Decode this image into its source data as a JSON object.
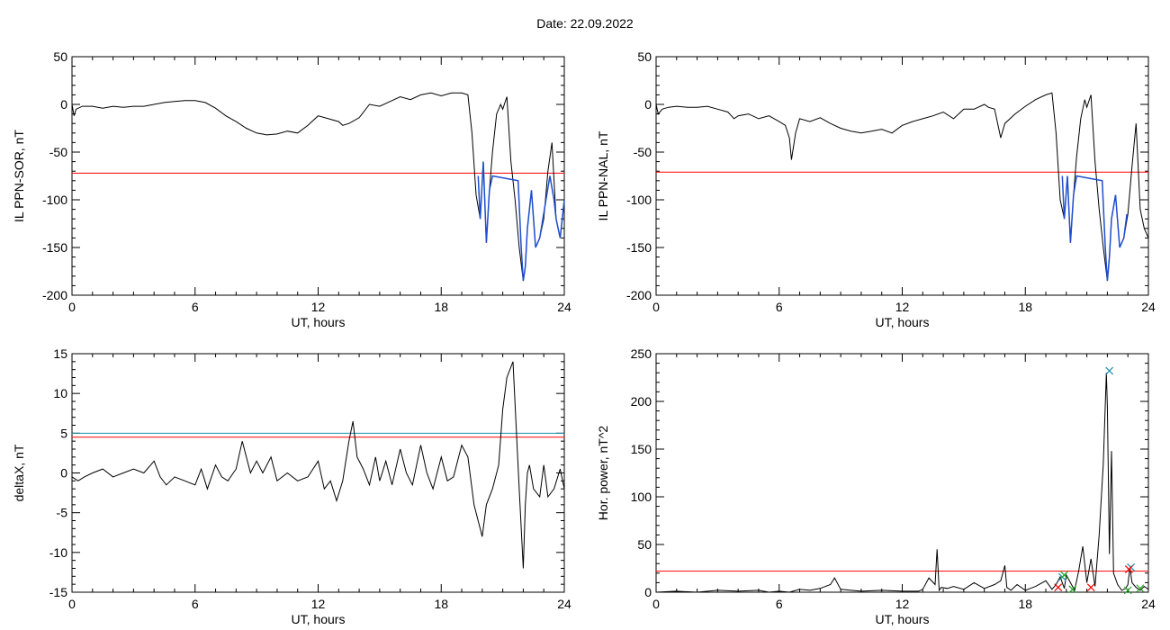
{
  "figure_title": "Date:  22.09.2022",
  "colors": {
    "trace": "#000000",
    "threshold_red": "#ff0000",
    "threshold_blue": "#1a8fb0",
    "highlight_blue": "#1f4fd0",
    "marker_green": "#1faa1f"
  },
  "chart_data": [
    {
      "id": "ppn-sor",
      "type": "line",
      "xlabel": "UT, hours",
      "ylabel": "IL PPN-SOR, nT",
      "xlim": [
        0,
        24
      ],
      "ylim": [
        -200,
        50
      ],
      "xticks": [
        "0",
        "6",
        "12",
        "18",
        "24"
      ],
      "yticks": [
        "50",
        "0",
        "-50",
        "-100",
        "-150",
        "-200"
      ],
      "threshold_red": -72,
      "series": [
        {
          "x": [
            0,
            0.1,
            0.2,
            0.5,
            1,
            1.5,
            2,
            2.5,
            3,
            3.5,
            4,
            4.5,
            5,
            5.5,
            6,
            6.5,
            7,
            7.5,
            8,
            8.5,
            9,
            9.5,
            10,
            10.5,
            11,
            11.5,
            12,
            12.5,
            13,
            13.2,
            13.5,
            14,
            14.5,
            15,
            15.5,
            16,
            16.5,
            17,
            17.5,
            18,
            18.5,
            19,
            19.3,
            19.5,
            19.7,
            19.9,
            20.05,
            20.2,
            20.35,
            20.5,
            20.7,
            20.9,
            21,
            21.2,
            21.4,
            21.6,
            21.8,
            22,
            22.1,
            22.2,
            22.4,
            22.6,
            22.8,
            23,
            23.2,
            23.4,
            23.6,
            23.8,
            24
          ],
          "values": [
            0,
            -12,
            -5,
            -2,
            -2,
            -4,
            -2,
            -3,
            -2,
            -2,
            0,
            2,
            3,
            4,
            4,
            2,
            -4,
            -12,
            -18,
            -25,
            -30,
            -32,
            -31,
            -28,
            -30,
            -22,
            -12,
            -15,
            -18,
            -22,
            -20,
            -14,
            0,
            -2,
            3,
            8,
            5,
            10,
            12,
            9,
            12,
            12,
            10,
            -30,
            -95,
            -120,
            -60,
            -145,
            -90,
            -50,
            -10,
            0,
            -5,
            8,
            -60,
            -100,
            -150,
            -185,
            -170,
            -130,
            -90,
            -150,
            -140,
            -120,
            -70,
            -40,
            -120,
            -140,
            -100
          ]
        }
      ],
      "highlight": {
        "x": [
          19.8,
          19.9,
          20.05,
          20.2,
          20.35,
          20.5,
          21.75,
          21.9,
          22.0,
          22.1,
          22.2,
          22.4,
          22.6,
          22.8,
          23.3,
          23.5,
          23.6,
          23.8,
          24
        ],
        "values": [
          -75,
          -120,
          -60,
          -145,
          -90,
          -75,
          -80,
          -150,
          -185,
          -170,
          -130,
          -90,
          -150,
          -140,
          -75,
          -100,
          -120,
          -140,
          -100
        ]
      }
    },
    {
      "id": "ppn-nal",
      "type": "line",
      "xlabel": "UT, hours",
      "ylabel": "IL PPN-NAL, nT",
      "xlim": [
        0,
        24
      ],
      "ylim": [
        -200,
        50
      ],
      "xticks": [
        "0",
        "6",
        "12",
        "18",
        "24"
      ],
      "yticks": [
        "50",
        "0",
        "-50",
        "-100",
        "-150",
        "-200"
      ],
      "threshold_red": -71,
      "series": [
        {
          "x": [
            0,
            0.1,
            0.3,
            0.6,
            1,
            1.5,
            2,
            2.5,
            3,
            3.5,
            3.8,
            4,
            4.5,
            5,
            5.5,
            6,
            6.3,
            6.5,
            6.6,
            6.8,
            7,
            7.5,
            8,
            8.5,
            9,
            9.5,
            10,
            10.5,
            11,
            11.5,
            12,
            12.5,
            13,
            13.5,
            14,
            14.5,
            15,
            15.5,
            16,
            16.2,
            16.5,
            16.8,
            17,
            17.5,
            18,
            18.5,
            19,
            19.3,
            19.5,
            19.7,
            19.9,
            20.05,
            20.2,
            20.35,
            20.5,
            20.7,
            20.9,
            21,
            21.2,
            21.4,
            21.6,
            21.8,
            22,
            22.1,
            22.2,
            22.4,
            22.6,
            22.8,
            23,
            23.2,
            23.4,
            23.6,
            23.8,
            24
          ],
          "values": [
            0,
            -10,
            -5,
            -3,
            -2,
            -3,
            -3,
            -2,
            -5,
            -8,
            -15,
            -12,
            -10,
            -15,
            -12,
            -18,
            -22,
            -35,
            -58,
            -30,
            -15,
            -18,
            -14,
            -20,
            -25,
            -28,
            -30,
            -28,
            -26,
            -30,
            -22,
            -18,
            -15,
            -12,
            -8,
            -15,
            -5,
            -5,
            0,
            -3,
            -5,
            -35,
            -20,
            -10,
            -2,
            5,
            10,
            12,
            -30,
            -100,
            -120,
            -75,
            -145,
            -95,
            -55,
            -15,
            5,
            -3,
            10,
            -60,
            -110,
            -150,
            -185,
            -160,
            -120,
            -95,
            -150,
            -140,
            -115,
            -65,
            -20,
            -110,
            -130,
            -140
          ]
        }
      ],
      "highlight": {
        "x": [
          19.8,
          19.9,
          20.05,
          20.2,
          20.35,
          20.5,
          21.75,
          21.9,
          22.0,
          22.1,
          22.2,
          22.4,
          22.6,
          22.8,
          22.95
        ],
        "values": [
          -75,
          -120,
          -75,
          -145,
          -95,
          -75,
          -80,
          -150,
          -185,
          -160,
          -120,
          -95,
          -150,
          -140,
          -115
        ]
      }
    },
    {
      "id": "deltax",
      "type": "line",
      "xlabel": "UT, hours",
      "ylabel": "deltaX, nT",
      "xlim": [
        0,
        24
      ],
      "ylim": [
        -15,
        15
      ],
      "xticks": [
        "0",
        "6",
        "12",
        "18",
        "24"
      ],
      "yticks": [
        "15",
        "10",
        "5",
        "0",
        "-5",
        "-10",
        "-15"
      ],
      "threshold_red": 4.5,
      "threshold_blue": 5.0,
      "series": [
        {
          "x": [
            0,
            0.3,
            0.6,
            1,
            1.5,
            2,
            2.5,
            3,
            3.5,
            4,
            4.3,
            4.6,
            5,
            5.5,
            6,
            6.3,
            6.6,
            7,
            7.3,
            7.6,
            8,
            8.3,
            8.7,
            9,
            9.3,
            9.7,
            10,
            10.5,
            11,
            11.5,
            12,
            12.3,
            12.6,
            12.9,
            13.2,
            13.5,
            13.7,
            13.9,
            14.2,
            14.5,
            14.8,
            15,
            15.3,
            15.6,
            16,
            16.3,
            16.6,
            17,
            17.3,
            17.6,
            18,
            18.3,
            18.6,
            19,
            19.3,
            19.6,
            20,
            20.2,
            20.5,
            20.8,
            21,
            21.2,
            21.5,
            21.8,
            22,
            22.1,
            22.2,
            22.3,
            22.5,
            22.8,
            23,
            23.2,
            23.5,
            23.8,
            24
          ],
          "values": [
            -0.5,
            -1,
            -0.5,
            0,
            0.5,
            -0.5,
            0,
            0.5,
            0,
            1.5,
            -0.5,
            -1.5,
            -0.5,
            -1,
            -1.5,
            0.5,
            -2,
            1,
            -0.5,
            -1,
            0.5,
            4,
            0,
            1.5,
            0,
            2,
            -1,
            0,
            -1,
            -0.5,
            1.5,
            -2,
            -1,
            -3.5,
            -1,
            4,
            6.5,
            2,
            0.5,
            -1.5,
            2,
            -1,
            1.5,
            -1.5,
            3,
            0,
            -1.5,
            3.5,
            0,
            -2,
            2,
            -1,
            -0.5,
            3.5,
            2,
            -4,
            -8,
            -4,
            -2,
            1,
            8,
            12,
            14,
            -2,
            -12,
            -4,
            0,
            1,
            -2,
            -3,
            1,
            -3,
            -2,
            0.5,
            -2
          ]
        }
      ]
    },
    {
      "id": "hor-power",
      "type": "line",
      "xlabel": "UT, hours",
      "ylabel": "Hor. power, nT^2",
      "xlim": [
        0,
        24
      ],
      "ylim": [
        0,
        250
      ],
      "xticks": [
        "0",
        "6",
        "12",
        "18",
        "24"
      ],
      "yticks": [
        "250",
        "200",
        "150",
        "100",
        "50",
        "0"
      ],
      "threshold_red": 22,
      "series": [
        {
          "x": [
            0,
            1,
            2,
            3,
            4,
            5,
            5.5,
            6,
            6.5,
            7,
            7.5,
            8,
            8.5,
            8.7,
            9,
            9.5,
            10,
            11,
            12,
            12.8,
            13,
            13.3,
            13.6,
            13.7,
            13.8,
            13.9,
            14.2,
            14.5,
            15,
            15.5,
            16,
            16.5,
            16.8,
            17,
            17.1,
            17.3,
            17.6,
            18,
            18.5,
            19,
            19.3,
            19.5,
            19.7,
            19.9,
            20,
            20.2,
            20.4,
            20.6,
            20.8,
            21,
            21.2,
            21.4,
            21.6,
            21.8,
            21.95,
            22.0,
            22.1,
            22.2,
            22.3,
            22.5,
            22.7,
            22.9,
            23,
            23.1,
            23.2,
            23.4,
            23.6,
            23.8,
            24
          ],
          "values": [
            0,
            1,
            0,
            2,
            1,
            2,
            0,
            1,
            0,
            3,
            2,
            4,
            8,
            15,
            3,
            2,
            1,
            2,
            1,
            1,
            3,
            15,
            8,
            45,
            2,
            5,
            4,
            6,
            3,
            10,
            4,
            8,
            12,
            28,
            5,
            2,
            8,
            2,
            6,
            12,
            3,
            8,
            16,
            4,
            18,
            10,
            2,
            22,
            48,
            10,
            35,
            6,
            60,
            135,
            230,
            195,
            40,
            148,
            20,
            8,
            2,
            4,
            8,
            26,
            10,
            5,
            2,
            6,
            3
          ]
        }
      ],
      "markers_blue": {
        "x": [
          19.8,
          22.1,
          23.15
        ],
        "values": [
          16,
          232,
          26
        ]
      },
      "markers_red": {
        "x": [
          19.6,
          21.2,
          23.05
        ],
        "values": [
          5,
          5,
          24
        ]
      },
      "markers_green": {
        "x": [
          19.9,
          20.3,
          23.0,
          23.6
        ],
        "values": [
          18,
          3,
          2,
          4
        ]
      }
    }
  ]
}
